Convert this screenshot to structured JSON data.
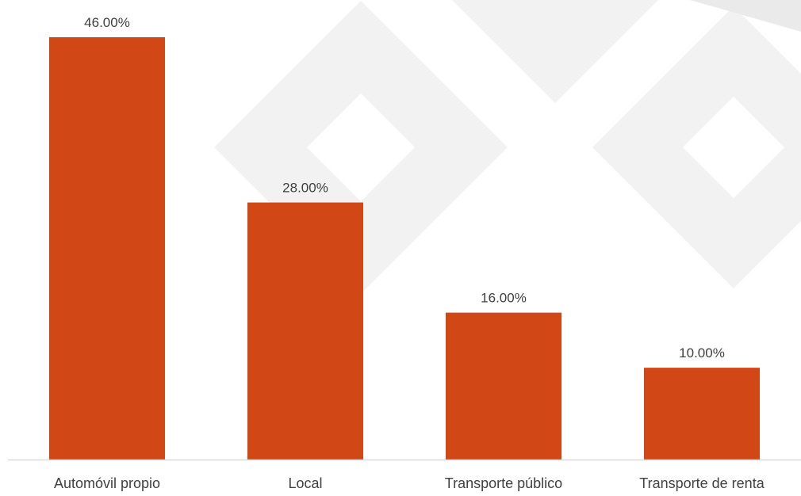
{
  "chart_data": {
    "type": "bar",
    "categories": [
      "Automóvil propio",
      "Local",
      "Transporte público",
      "Transporte de renta"
    ],
    "values": [
      46,
      28,
      16,
      10
    ],
    "value_labels": [
      "46.00%",
      "28.00%",
      "16.00%",
      "10.00%"
    ],
    "ylim": [
      0,
      46
    ],
    "grid": false,
    "legend": "none",
    "colors": {
      "bar": "#D24716",
      "axis": "#D9D9D9",
      "text": "#404040",
      "watermark": "#F2F2F2"
    }
  }
}
